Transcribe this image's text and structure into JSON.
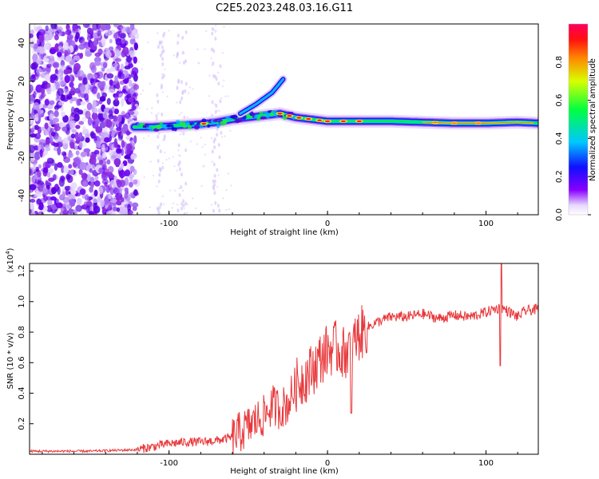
{
  "figure": {
    "title": "C2E5.2023.248.03.16.G11"
  },
  "chart_data": [
    {
      "type": "heatmap",
      "xlabel": "Height of straight line (km)",
      "ylabel": "Frequency (Hz)",
      "xlim": [
        -188,
        133
      ],
      "ylim": [
        -50,
        50
      ],
      "x_ticks": [
        "-100",
        "0",
        "100"
      ],
      "y_ticks": [
        "-40",
        "-20",
        "0",
        "20",
        "40"
      ],
      "colorbar": {
        "label": "Normalized spectral amplitude",
        "range": [
          0,
          1
        ],
        "ticks": [
          "0.0",
          "0.2",
          "0.4",
          "0.6",
          "0.8"
        ]
      },
      "ridge": {
        "x": [
          -122,
          -110,
          -100,
          -90,
          -80,
          -70,
          -60,
          -50,
          -40,
          -30,
          -20,
          -10,
          0,
          20,
          40,
          60,
          80,
          100,
          120,
          133
        ],
        "y": [
          -4,
          -4,
          -3.5,
          -3,
          -2.5,
          -1.5,
          0,
          1,
          2,
          3,
          1,
          0,
          -1,
          -1,
          -1,
          -1.5,
          -2,
          -2,
          -1.5,
          -2
        ]
      },
      "branch": {
        "x": [
          -55,
          -45,
          -35,
          -28
        ],
        "y": [
          3,
          8,
          14,
          21
        ]
      },
      "noise_region_x": [
        -188,
        -120
      ]
    },
    {
      "type": "line",
      "xlabel": "Height of straight line (km)",
      "ylabel": "SNR (10 * v/v)",
      "y_multiplier": "(x10",
      "y_multiplier_exp": "4",
      "multiplier_close": ")",
      "xlim": [
        -188,
        133
      ],
      "ylim": [
        0,
        1.25
      ],
      "x_ticks": [
        "-100",
        "0",
        "100"
      ],
      "y_ticks": [
        "0.2",
        "0.4",
        "0.6",
        "0.8",
        "1.0",
        "1.2"
      ],
      "series": [
        {
          "color": "#e8383b",
          "x": [
            -188,
            -150,
            -120,
            -110,
            -100,
            -90,
            -80,
            -70,
            -60,
            -50,
            -45,
            -40,
            -35,
            -30,
            -25,
            -20,
            -15,
            -10,
            -5,
            0,
            5,
            10,
            15,
            20,
            25,
            30,
            35,
            40,
            50,
            60,
            70,
            80,
            90,
            100,
            105,
            110,
            115,
            120,
            125,
            133
          ],
          "y": [
            0.02,
            0.02,
            0.03,
            0.05,
            0.07,
            0.08,
            0.08,
            0.09,
            0.11,
            0.18,
            0.22,
            0.25,
            0.32,
            0.3,
            0.33,
            0.45,
            0.5,
            0.55,
            0.62,
            0.68,
            0.7,
            0.66,
            0.72,
            0.78,
            0.83,
            0.86,
            0.88,
            0.9,
            0.9,
            0.92,
            0.89,
            0.91,
            0.9,
            0.93,
            0.95,
            0.96,
            0.93,
            0.9,
            0.94,
            0.95
          ]
        }
      ]
    }
  ]
}
